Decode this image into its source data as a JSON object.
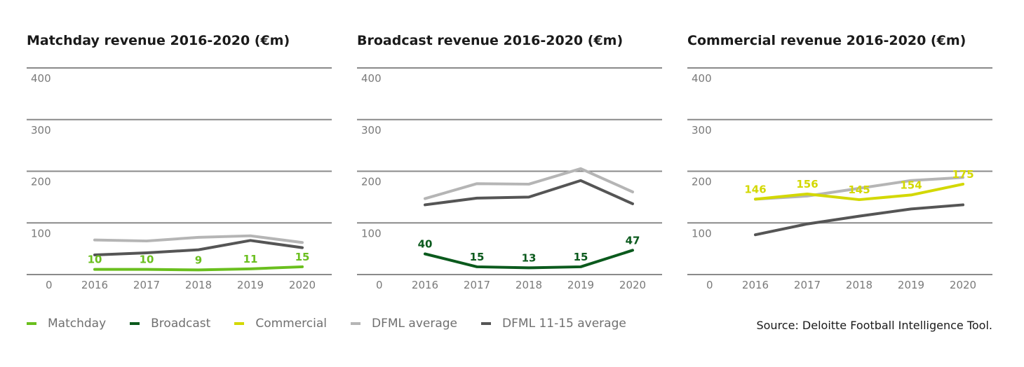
{
  "chart_data": [
    {
      "type": "line",
      "title": "Matchday revenue 2016-2020 (€m)",
      "x": [
        "2016",
        "2017",
        "2018",
        "2019",
        "2020"
      ],
      "ylim": [
        0,
        400
      ],
      "yticks": [
        "0",
        "100",
        "200",
        "300",
        "400"
      ],
      "grid": true,
      "series": [
        {
          "name": "DFML average",
          "values": [
            67,
            65,
            72,
            75,
            62
          ],
          "color": "#b5b5b5",
          "labels": null
        },
        {
          "name": "DFML 11-15 average",
          "values": [
            38,
            42,
            48,
            66,
            52
          ],
          "color": "#555555",
          "labels": null
        },
        {
          "name": "Matchday",
          "values": [
            10,
            10,
            9,
            11,
            15
          ],
          "color": "#6abf1e",
          "labels": [
            "10",
            "10",
            "9",
            "11",
            "15"
          ]
        }
      ]
    },
    {
      "type": "line",
      "title": "Broadcast revenue 2016-2020 (€m)",
      "x": [
        "2016",
        "2017",
        "2018",
        "2019",
        "2020"
      ],
      "ylim": [
        0,
        400
      ],
      "yticks": [
        "0",
        "100",
        "200",
        "300",
        "400"
      ],
      "grid": true,
      "series": [
        {
          "name": "DFML average",
          "values": [
            147,
            176,
            175,
            205,
            160
          ],
          "color": "#b5b5b5",
          "labels": null
        },
        {
          "name": "DFML 11-15 average",
          "values": [
            135,
            148,
            150,
            182,
            137
          ],
          "color": "#555555",
          "labels": null
        },
        {
          "name": "Broadcast",
          "values": [
            40,
            15,
            13,
            15,
            47
          ],
          "color": "#0b5a1d",
          "labels": [
            "40",
            "15",
            "13",
            "15",
            "47"
          ]
        }
      ]
    },
    {
      "type": "line",
      "title": "Commercial revenue 2016-2020 (€m)",
      "x": [
        "2016",
        "2017",
        "2018",
        "2019",
        "2020"
      ],
      "ylim": [
        0,
        400
      ],
      "yticks": [
        "0",
        "100",
        "200",
        "300",
        "400"
      ],
      "grid": true,
      "series": [
        {
          "name": "DFML average",
          "values": [
            146,
            152,
            167,
            182,
            188
          ],
          "color": "#b5b5b5",
          "labels": null
        },
        {
          "name": "DFML 11-15 average",
          "values": [
            77,
            98,
            113,
            127,
            135
          ],
          "color": "#555555",
          "labels": null
        },
        {
          "name": "Commercial",
          "values": [
            146,
            156,
            145,
            154,
            175
          ],
          "color": "#d3d800",
          "labels": [
            "146",
            "156",
            "145",
            "154",
            "175"
          ]
        }
      ]
    }
  ],
  "legend": [
    {
      "label": "Matchday",
      "color": "#6abf1e"
    },
    {
      "label": "Broadcast",
      "color": "#0b5a1d"
    },
    {
      "label": "Commercial",
      "color": "#d3d800"
    },
    {
      "label": "DFML average",
      "color": "#b5b5b5"
    },
    {
      "label": "DFML 11-15 average",
      "color": "#555555"
    }
  ],
  "source": "Source: Deloitte Football Intelligence Tool."
}
